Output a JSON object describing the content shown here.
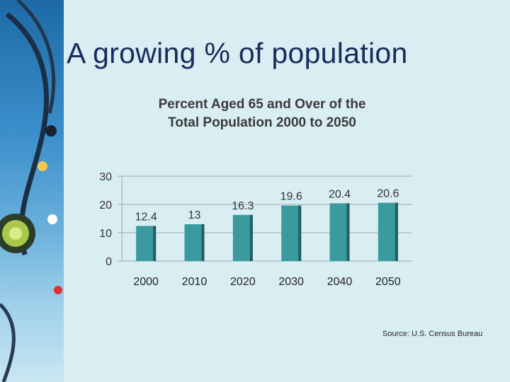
{
  "slide": {
    "title": "A growing % of population",
    "source": "Source: U.S. Census Bureau"
  },
  "colors": {
    "bar": "#3a9a9e",
    "bar_shadow": "#1f5e61",
    "title": "#1a2a5a"
  },
  "chart_data": {
    "type": "bar",
    "title_lines": [
      "Percent Aged 65 and Over of the",
      "Total Population 2000 to 2050"
    ],
    "categories": [
      "2000",
      "2010",
      "2020",
      "2030",
      "2040",
      "2050"
    ],
    "values": [
      12.4,
      13,
      16.3,
      19.6,
      20.4,
      20.6
    ],
    "value_labels": [
      "12.4",
      "13",
      "16.3",
      "19.6",
      "20.4",
      "20.6"
    ],
    "yticks": [
      "0",
      "10",
      "20",
      "30"
    ],
    "ylim": [
      0,
      30
    ],
    "xlabel": "",
    "ylabel": "",
    "grid": true,
    "legend": "none"
  }
}
